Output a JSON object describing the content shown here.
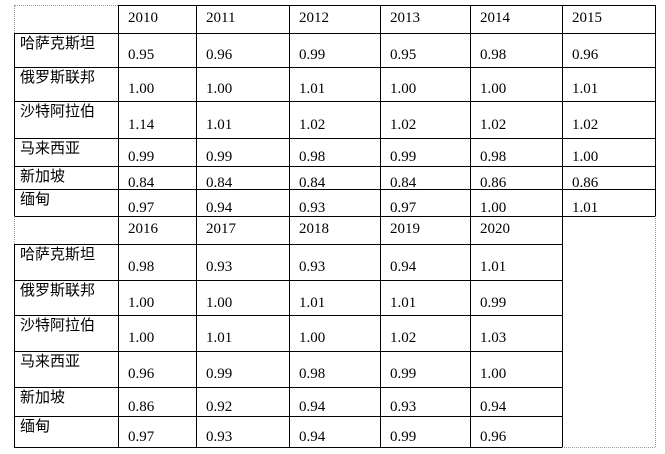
{
  "tables": [
    {
      "years": [
        "2010",
        "2011",
        "2012",
        "2013",
        "2014",
        "2015"
      ],
      "rows": [
        {
          "label": "哈萨克斯坦",
          "values": [
            "0.95",
            "0.96",
            "0.99",
            "0.95",
            "0.98",
            "0.96"
          ]
        },
        {
          "label": "俄罗斯联邦",
          "values": [
            "1.00",
            "1.00",
            "1.01",
            "1.00",
            "1.00",
            "1.01"
          ]
        },
        {
          "label": "沙特阿拉伯",
          "values": [
            "1.14",
            "1.01",
            "1.02",
            "1.02",
            "1.02",
            "1.02"
          ]
        },
        {
          "label": "马来西亚",
          "values": [
            "0.99",
            "0.99",
            "0.98",
            "0.99",
            "0.98",
            "1.00"
          ]
        },
        {
          "label": "新加坡",
          "values": [
            "0.84",
            "0.84",
            "0.84",
            "0.84",
            "0.86",
            "0.86"
          ]
        },
        {
          "label": "缅甸",
          "values": [
            "0.97",
            "0.94",
            "0.93",
            "0.97",
            "1.00",
            "1.01"
          ]
        }
      ]
    },
    {
      "years": [
        "2016",
        "2017",
        "2018",
        "2019",
        "2020"
      ],
      "rows": [
        {
          "label": "哈萨克斯坦",
          "values": [
            "0.98",
            "0.93",
            "0.93",
            "0.94",
            "1.01"
          ]
        },
        {
          "label": "俄罗斯联邦",
          "values": [
            "1.00",
            "1.00",
            "1.01",
            "1.01",
            "0.99"
          ]
        },
        {
          "label": "沙特阿拉伯",
          "values": [
            "1.00",
            "1.01",
            "1.00",
            "1.02",
            "1.03"
          ]
        },
        {
          "label": "马来西亚",
          "values": [
            "0.96",
            "0.99",
            "0.98",
            "0.99",
            "1.00"
          ]
        },
        {
          "label": "新加坡",
          "values": [
            "0.86",
            "0.92",
            "0.94",
            "0.93",
            "0.94"
          ]
        },
        {
          "label": "缅甸",
          "values": [
            "0.97",
            "0.93",
            "0.94",
            "0.99",
            "0.96"
          ]
        }
      ]
    }
  ]
}
